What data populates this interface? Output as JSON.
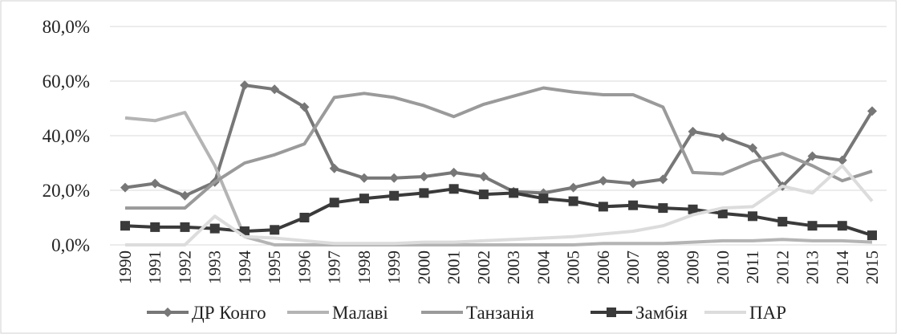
{
  "chart_data": {
    "type": "line",
    "categories": [
      "1990",
      "1991",
      "1992",
      "1993",
      "1994",
      "1995",
      "1996",
      "1997",
      "1998",
      "1999",
      "2000",
      "2001",
      "2002",
      "2003",
      "2004",
      "2005",
      "2006",
      "2007",
      "2008",
      "2009",
      "2010",
      "2011",
      "2012",
      "2013",
      "2014",
      "2015"
    ],
    "series": [
      {
        "name": "ДР Конго",
        "color": "#777777",
        "marker": "diamond",
        "values": [
          21,
          22.5,
          18,
          23,
          58.5,
          57,
          50.5,
          28,
          24.5,
          24.5,
          25,
          26.5,
          25,
          19.5,
          19,
          21,
          23.5,
          22.5,
          24,
          41.5,
          39.5,
          35.5,
          21.5,
          32.5,
          31,
          49
        ]
      },
      {
        "name": "Малаві",
        "color": "#b4b4b4",
        "marker": "none",
        "values": [
          46.5,
          45.5,
          48.5,
          29,
          3,
          0,
          0,
          0,
          0,
          0,
          0,
          0,
          0,
          0,
          0,
          0,
          0.5,
          0.5,
          0.5,
          1,
          1.5,
          1.5,
          2,
          1.5,
          1.5,
          1
        ]
      },
      {
        "name": "Танзанія",
        "color": "#9a9a9a",
        "marker": "none",
        "values": [
          13.5,
          13.5,
          13.5,
          23,
          30,
          33,
          37,
          54,
          55.5,
          54,
          51,
          47,
          51.5,
          54.5,
          57.5,
          56,
          55,
          55,
          50.5,
          26.5,
          26,
          30.5,
          33.5,
          29,
          23.5,
          27
        ]
      },
      {
        "name": "Замбія",
        "color": "#3a3a3a",
        "marker": "square",
        "values": [
          7,
          6.5,
          6.5,
          6,
          5,
          5.5,
          10,
          15.5,
          17,
          18,
          19,
          20.5,
          18.5,
          19,
          17,
          16,
          14,
          14.5,
          13.5,
          13,
          11.5,
          10.5,
          8.5,
          7,
          7,
          3.5
        ]
      },
      {
        "name": "ПАР",
        "color": "#dcdcdc",
        "marker": "none",
        "values": [
          0,
          0,
          0,
          10.5,
          3,
          2.5,
          1.5,
          0.5,
          0.5,
          0.5,
          1,
          1,
          1.5,
          2,
          2.5,
          3,
          4,
          5,
          7,
          11,
          13.5,
          14,
          21.5,
          19,
          29,
          16
        ]
      }
    ],
    "ylim": [
      0,
      80
    ],
    "yticks": [
      {
        "value": 0,
        "label": "0,0%"
      },
      {
        "value": 20,
        "label": "20,0%"
      },
      {
        "value": 40,
        "label": "40,0%"
      },
      {
        "value": 60,
        "label": "60,0%"
      },
      {
        "value": 80,
        "label": "80,0%"
      }
    ],
    "grid": true,
    "legend": "bottom"
  }
}
